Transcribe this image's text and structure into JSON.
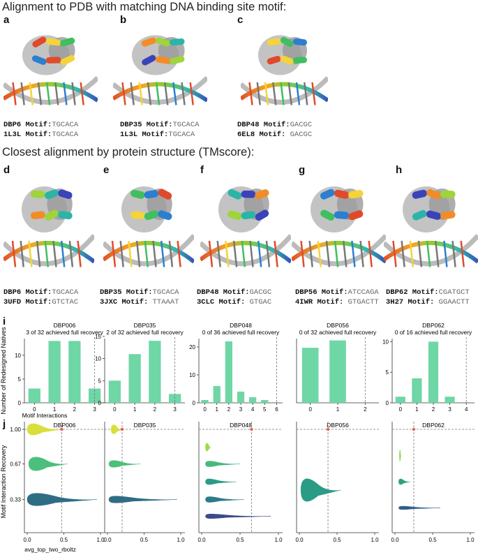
{
  "sections": {
    "top_title": "Alignment to PDB with matching DNA binding site motif:",
    "mid_title": "Closest alignment by protein structure (TMscore):"
  },
  "structure_panels": [
    {
      "label": "a",
      "rows": [
        {
          "name": "DBP6 Motif:",
          "seq": "TGCACA"
        },
        {
          "name": "1L3L Motif:",
          "seq": "TGCACA"
        }
      ]
    },
    {
      "label": "b",
      "rows": [
        {
          "name": "DBP35 Motif:",
          "seq": "TGCACA"
        },
        {
          "name": "1L3L Motif:",
          "seq": "TGCACA"
        }
      ]
    },
    {
      "label": "c",
      "rows": [
        {
          "name": "DBP48 Motif:",
          "seq": "GACGC"
        },
        {
          "name": "6EL8 Motif:",
          "seq": " GACGC"
        }
      ]
    },
    {
      "label": "d",
      "rows": [
        {
          "name": "DBP6 Motif:",
          "seq": "TGCACA"
        },
        {
          "name": "3UFD Motif:",
          "seq": "GTCTAC"
        }
      ]
    },
    {
      "label": "e",
      "rows": [
        {
          "name": "DBP35 Motif:",
          "seq": "TGCACA"
        },
        {
          "name": "3JXC Motif:",
          "seq": " TTAAAT"
        }
      ]
    },
    {
      "label": "f",
      "rows": [
        {
          "name": "DBP48 Motif:",
          "seq": "GACGC"
        },
        {
          "name": "3CLC Motif:",
          "seq": " GTGAC"
        }
      ]
    },
    {
      "label": "g",
      "rows": [
        {
          "name": "DBP56 Motif:",
          "seq": "ATCCAGA"
        },
        {
          "name": "4IWR Motif:",
          "seq": " GTGACTT"
        }
      ]
    },
    {
      "label": "h",
      "rows": [
        {
          "name": "DBP62 Motif:",
          "seq": "CGATGCT"
        },
        {
          "name": "3H27 Motif:",
          "seq": " GGAACTT"
        }
      ]
    }
  ],
  "colors": {
    "bar": "#6fd6a6",
    "dashed": "#777777",
    "dot": "#e0605f"
  },
  "chart_data": [
    {
      "panel": "i",
      "type": "bar",
      "ylabel": "Number of Redesigned Natives",
      "xlabel": "Motif Interactions",
      "subplots": [
        {
          "title": "DBP006",
          "subtitle": "3 of 32 achieved full recovery",
          "categories": [
            "0",
            "1",
            "2",
            "3"
          ],
          "values": [
            3,
            13,
            13,
            3
          ],
          "yticks": [
            0,
            5,
            10
          ],
          "ylim": [
            0,
            13.5
          ],
          "xlim": [
            -0.5,
            3.5
          ],
          "max_line": 3
        },
        {
          "title": "DBP035",
          "subtitle": "2 of 32 achieved full recovery",
          "categories": [
            "0",
            "1",
            "2",
            "3"
          ],
          "values": [
            5,
            11,
            14,
            2
          ],
          "yticks": [
            0,
            5,
            10,
            15
          ],
          "ylim": [
            0,
            14.5
          ],
          "xlim": [
            -0.5,
            3.5
          ],
          "max_line": 3
        },
        {
          "title": "DBP048",
          "subtitle": "0 of 36 achieved full recovery",
          "categories": [
            "0",
            "1",
            "2",
            "3",
            "4",
            "5",
            "6"
          ],
          "values": [
            1,
            6,
            22,
            4,
            2,
            1,
            0
          ],
          "yticks": [
            0,
            10,
            20
          ],
          "ylim": [
            0,
            23
          ],
          "xlim": [
            -0.5,
            6.5
          ],
          "max_line": 6
        },
        {
          "title": "DBP056",
          "subtitle": "0 of 32 achieved full recovery",
          "categories": [
            "0",
            "1",
            "2"
          ],
          "values": [
            15,
            17,
            0
          ],
          "yticks": [],
          "ylim": [
            0,
            17.5
          ],
          "xlim": [
            -0.5,
            2.5
          ],
          "max_line": 2
        },
        {
          "title": "DBP062",
          "subtitle": "0 of 16 achieved full recovery",
          "categories": [
            "0",
            "1",
            "2",
            "3",
            "4"
          ],
          "values": [
            1,
            4,
            10,
            1,
            0
          ],
          "yticks": [
            0,
            5,
            10
          ],
          "ylim": [
            0,
            10.5
          ],
          "xlim": [
            -0.5,
            4.5
          ],
          "max_line": 4
        }
      ]
    },
    {
      "panel": "j",
      "type": "violin",
      "ylabel": "Motif Interaction Recovery",
      "xlabel": "avg_top_two_rboltz",
      "yticks": [
        "1.00",
        "0.67",
        "0.33"
      ],
      "xticks": [
        "0.0",
        "0.5",
        "1.0"
      ],
      "xlim": [
        0,
        1
      ],
      "subplots": [
        {
          "title": "DBP006",
          "vline": 0.47,
          "dot": [
            0.47,
            1.0
          ],
          "violins": [
            {
              "y": 1.0,
              "x0": 0.0,
              "x1": 0.47,
              "peak": 0.1,
              "h": 10,
              "color": "#d9df3a"
            },
            {
              "y": 0.67,
              "x0": 0.02,
              "x1": 0.55,
              "peak": 0.15,
              "h": 12,
              "color": "#4cbf7c"
            },
            {
              "y": 0.33,
              "x0": 0.0,
              "x1": 0.95,
              "peak": 0.15,
              "h": 11,
              "color": "#2e6d84"
            }
          ]
        },
        {
          "title": "DBP035",
          "vline": 0.2,
          "dot": [
            0.2,
            1.0
          ],
          "violins": [
            {
              "y": 1.0,
              "x0": 0.05,
              "x1": 0.2,
              "peak": 0.1,
              "h": 8,
              "color": "#d9df3a"
            },
            {
              "y": 0.67,
              "x0": 0.02,
              "x1": 0.45,
              "peak": 0.1,
              "h": 6,
              "color": "#4cbf7c"
            },
            {
              "y": 0.33,
              "x0": 0.02,
              "x1": 0.95,
              "peak": 0.1,
              "h": 6,
              "color": "#2e6d84"
            }
          ]
        },
        {
          "title": "DBP048",
          "vline": 0.65,
          "dot": [
            0.65,
            1.0
          ],
          "violins": [
            {
              "y": 0.83,
              "x0": 0.05,
              "x1": 0.12,
              "peak": 0.08,
              "h": 7,
              "color": "#9bdc44"
            },
            {
              "y": 0.67,
              "x0": 0.05,
              "x1": 0.5,
              "peak": 0.1,
              "h": 5,
              "color": "#47b87e"
            },
            {
              "y": 0.5,
              "x0": 0.05,
              "x1": 0.45,
              "peak": 0.1,
              "h": 5,
              "color": "#2b9a88"
            },
            {
              "y": 0.33,
              "x0": 0.05,
              "x1": 0.55,
              "peak": 0.1,
              "h": 5,
              "color": "#2e7b8a"
            },
            {
              "y": 0.17,
              "x0": 0.05,
              "x1": 0.9,
              "peak": 0.1,
              "h": 4,
              "color": "#3b4b8a"
            }
          ]
        },
        {
          "title": "DBP056",
          "vline": 0.38,
          "dot": [
            0.38,
            1.0
          ],
          "violins": [
            {
              "y": 0.42,
              "x0": 0.02,
              "x1": 0.55,
              "peak": 0.12,
              "h": 20,
              "color": "#2a9c86"
            }
          ]
        },
        {
          "title": "DBP062",
          "vline": 0.25,
          "dot": [
            0.25,
            1.0
          ],
          "violins": [
            {
              "y": 0.75,
              "x0": 0.06,
              "x1": 0.08,
              "peak": 0.07,
              "h": 10,
              "color": "#8fd84c"
            },
            {
              "y": 0.5,
              "x0": 0.05,
              "x1": 0.2,
              "peak": 0.08,
              "h": 5,
              "color": "#2ea183"
            },
            {
              "y": 0.25,
              "x0": 0.05,
              "x1": 0.6,
              "peak": 0.1,
              "h": 3,
              "color": "#2f5e8c"
            }
          ]
        }
      ]
    }
  ]
}
